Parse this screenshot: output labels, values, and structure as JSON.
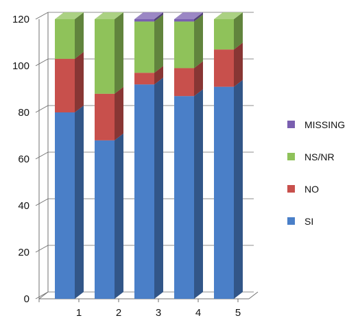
{
  "chart_data": {
    "type": "bar",
    "stacked": true,
    "three_d": true,
    "title": "",
    "xlabel": "",
    "ylabel": "",
    "categories": [
      "1",
      "2",
      "3",
      "4",
      "5"
    ],
    "ylim": [
      0,
      120
    ],
    "yticks": [
      "0",
      "20",
      "40",
      "60",
      "80",
      "100",
      "120"
    ],
    "grid": true,
    "legend": "right",
    "series": [
      {
        "name": "SI",
        "color": "#4a7fc8",
        "values": [
          80,
          68,
          92,
          87,
          91
        ]
      },
      {
        "name": "NO",
        "color": "#c8504c",
        "values": [
          23,
          20,
          5,
          12,
          16
        ]
      },
      {
        "name": "NS/NR",
        "color": "#8fc25a",
        "values": [
          17,
          32,
          22,
          20,
          13
        ]
      },
      {
        "name": "MISSING",
        "color": "#7a5fb0",
        "values": [
          0,
          0,
          1,
          1,
          0
        ]
      }
    ]
  }
}
